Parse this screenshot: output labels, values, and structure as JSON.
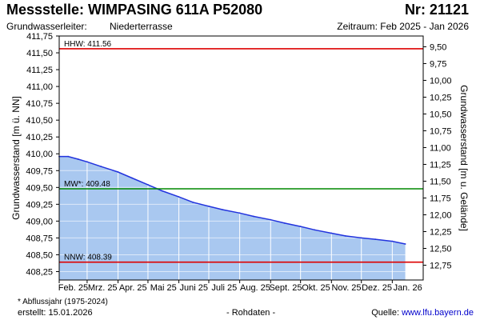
{
  "header": {
    "title": "Messstelle: WIMPASING 611A P52080",
    "nr": "Nr: 21121",
    "aquifer_label": "Grundwasserleiter:",
    "aquifer_value": "Niederterrasse",
    "period": "Zeitraum: Feb 2025 - Jan 2026"
  },
  "footer": {
    "footnote": "* Abflussjahr (1975-2024)",
    "created": "erstellt:  15.01.2026",
    "raw": "- Rohdaten -",
    "source_label": "Quelle:",
    "source_url": "www.lfu.bayern.de"
  },
  "colors": {
    "fill": "#a9c8f0",
    "line": "#2233dd",
    "hhw": "#dd0000",
    "nnw": "#dd0000",
    "mw": "#008800",
    "grid": "#ffffff"
  },
  "chart_data": {
    "type": "area",
    "ylabel_left": "Grundwasserstand [m ü. NN]",
    "ylabel_right": "Grundwasserstand [m u. Gelände]",
    "ylim_left": [
      408.125,
      411.75
    ],
    "ylim_right": [
      12.97,
      9.34
    ],
    "yticks_left": [
      408.25,
      408.5,
      408.75,
      409.0,
      409.25,
      409.5,
      409.75,
      410.0,
      410.25,
      410.5,
      410.75,
      411.0,
      411.25,
      411.5,
      411.75
    ],
    "yticks_left_labels": [
      "408,25",
      "408,50",
      "408,75",
      "409,00",
      "409,25",
      "409,50",
      "409,75",
      "410,00",
      "410,25",
      "410,50",
      "410,75",
      "411,00",
      "411,25",
      "411,50",
      "411,75"
    ],
    "yticks_right": [
      12.75,
      12.5,
      12.25,
      12.0,
      11.75,
      11.5,
      11.25,
      11.0,
      10.75,
      10.5,
      10.25,
      10.0,
      9.75,
      9.5
    ],
    "yticks_right_labels": [
      "12,75",
      "12,50",
      "12,25",
      "12,00",
      "11,75",
      "11,50",
      "11,25",
      "11,00",
      "10,75",
      "10,50",
      "10,25",
      "10,00",
      "9,75",
      "9,50"
    ],
    "xlim": [
      "2025-02-01",
      "2026-02-01"
    ],
    "xticks": [
      "2025-02-01",
      "2025-03-01",
      "2025-04-01",
      "2025-05-01",
      "2025-06-01",
      "2025-07-01",
      "2025-08-01",
      "2025-09-01",
      "2025-10-01",
      "2025-11-01",
      "2025-12-01",
      "2026-01-01"
    ],
    "xtick_labels": [
      "Feb. 25",
      "Mrz. 25",
      "Apr. 25",
      "Mai 25",
      "Juni 25",
      "Juli 25",
      "Aug. 25",
      "Sept. 25",
      "Okt. 25",
      "Nov. 25",
      "Dez. 25",
      "Jan. 26"
    ],
    "grid": true,
    "reference_lines": [
      {
        "label": "HHW: 411.56",
        "value": 411.56,
        "color": "#dd0000"
      },
      {
        "label": "MW*: 409.48",
        "value": 409.48,
        "color": "#008800"
      },
      {
        "label": "NNW: 408.39",
        "value": 408.39,
        "color": "#dd0000"
      }
    ],
    "series": [
      {
        "x": [
          "2025-02-01",
          "2025-02-10",
          "2025-02-20",
          "2025-03-01",
          "2025-03-15",
          "2025-04-01",
          "2025-04-15",
          "2025-05-01",
          "2025-05-15",
          "2025-06-01",
          "2025-06-15",
          "2025-07-01",
          "2025-07-15",
          "2025-08-01",
          "2025-08-15",
          "2025-09-01",
          "2025-09-15",
          "2025-10-01",
          "2025-10-15",
          "2025-11-01",
          "2025-11-15",
          "2025-12-01",
          "2025-12-15",
          "2026-01-01",
          "2026-01-14"
        ],
        "values": [
          409.96,
          409.96,
          409.92,
          409.88,
          409.81,
          409.73,
          409.64,
          409.54,
          409.45,
          409.36,
          409.28,
          409.22,
          409.17,
          409.12,
          409.07,
          409.02,
          408.97,
          408.92,
          408.87,
          408.82,
          408.78,
          408.75,
          408.73,
          408.7,
          408.66
        ]
      }
    ]
  }
}
